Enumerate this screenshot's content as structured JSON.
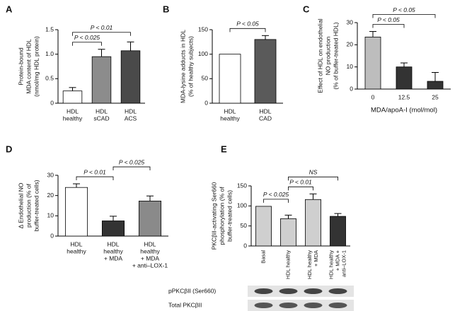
{
  "chart_data": [
    {
      "type": "bar",
      "panel": "A",
      "ylabel": [
        "Protein-bound",
        "MDA content of HDL",
        "(nmol/mg HDL protein)"
      ],
      "categories": [
        [
          "HDL",
          "healthy"
        ],
        [
          "HDL",
          "sCAD"
        ],
        [
          "HDL",
          "ACS"
        ]
      ],
      "values": [
        0.25,
        0.95,
        1.07
      ],
      "errors": [
        0.07,
        0.15,
        0.18
      ],
      "colors": [
        "#ffffff",
        "#8c8c8c",
        "#4a4a4a"
      ],
      "ylim": [
        0,
        1.5
      ],
      "yticks": [
        0,
        0.5,
        {
          "value": 1,
          "label": "1.0"
        },
        1.5
      ],
      "annotations": [
        {
          "text": "P < 0.025",
          "between": [
            0,
            1
          ]
        },
        {
          "text": "P < 0.01",
          "between": [
            0,
            2
          ]
        }
      ]
    },
    {
      "type": "bar",
      "panel": "B",
      "ylabel": [
        "MDA-lysine adducts in HDL",
        "(% of healthy subjects)"
      ],
      "categories": [
        [
          "HDL",
          "healthy"
        ],
        [
          "HDL",
          "CAD"
        ]
      ],
      "values": [
        100,
        130
      ],
      "errors": [
        null,
        8
      ],
      "colors": [
        "#ffffff",
        "#5a5a5a"
      ],
      "ylim": [
        0,
        150
      ],
      "yticks": [
        0,
        50,
        100,
        150
      ],
      "annotations": [
        {
          "text": "P < 0.05",
          "between": [
            0,
            1
          ]
        }
      ]
    },
    {
      "type": "bar",
      "panel": "C",
      "ylabel": [
        "Effect of HDL on endothelial",
        "NO production",
        "(% of buffer-treated HDL)"
      ],
      "xlabel": "MDA/apoA-I (mol/mol)",
      "categories": [
        [
          "0"
        ],
        [
          "12.5"
        ],
        [
          "25"
        ]
      ],
      "values": [
        23.5,
        10,
        3.5
      ],
      "errors": [
        2.5,
        1.8,
        4
      ],
      "colors": [
        "#bdbdbd",
        "#333333",
        "#333333"
      ],
      "ylim": [
        0,
        30
      ],
      "yticks": [
        0,
        10,
        20,
        30
      ],
      "annotations": [
        {
          "text": "P < 0.05",
          "between": [
            0,
            1
          ]
        },
        {
          "text": "P < 0.05",
          "between": [
            0,
            2
          ]
        }
      ]
    },
    {
      "type": "bar",
      "panel": "D",
      "ylabel": [
        "Δ Endothelial NO",
        "production (% of",
        "buffer-treated cells)"
      ],
      "categories": [
        [
          "HDL",
          "healthy"
        ],
        [
          "HDL",
          "healthy",
          "+ MDA"
        ],
        [
          "HDL",
          "healthy",
          "+ MDA",
          "+ anti–LOX-1"
        ]
      ],
      "values": [
        24,
        7.5,
        17.3
      ],
      "errors": [
        1.8,
        2.3,
        2.5
      ],
      "colors": [
        "#ffffff",
        "#333333",
        "#8a8a8a"
      ],
      "ylim": [
        0,
        30
      ],
      "yticks": [
        0,
        10,
        20,
        30
      ],
      "annotations": [
        {
          "text": "P < 0.01",
          "between": [
            0,
            1
          ]
        },
        {
          "text": "P < 0.025",
          "between": [
            1,
            2
          ]
        }
      ]
    },
    {
      "type": "bar",
      "panel": "E",
      "ylabel": [
        "PKCβII-activating Ser660",
        "phosphorylation (% of",
        "buffer-treated cells)"
      ],
      "categories": [
        [
          "Basal"
        ],
        [
          "HDL healthy"
        ],
        [
          "HDL healthy",
          "+ MDA"
        ],
        [
          "HDL healthy",
          "+ MDA +",
          "anti–LOX-1"
        ]
      ],
      "rotated_labels": true,
      "values": [
        99,
        68,
        116,
        74
      ],
      "errors": [
        null,
        9,
        14,
        7
      ],
      "colors": [
        "#cfcfcf",
        "#cfcfcf",
        "#cfcfcf",
        "#333333"
      ],
      "ylim": [
        0,
        150
      ],
      "yticks": [
        0,
        50,
        100,
        150
      ],
      "annotations": [
        {
          "text": "P < 0.025",
          "between": [
            0,
            1
          ]
        },
        {
          "text": "P < 0.01",
          "between": [
            1,
            2
          ]
        },
        {
          "text": "NS",
          "between": [
            1,
            3
          ]
        }
      ],
      "blot_rows": [
        "pPKCβII (Ser660)",
        "Total PKCβII"
      ]
    }
  ]
}
